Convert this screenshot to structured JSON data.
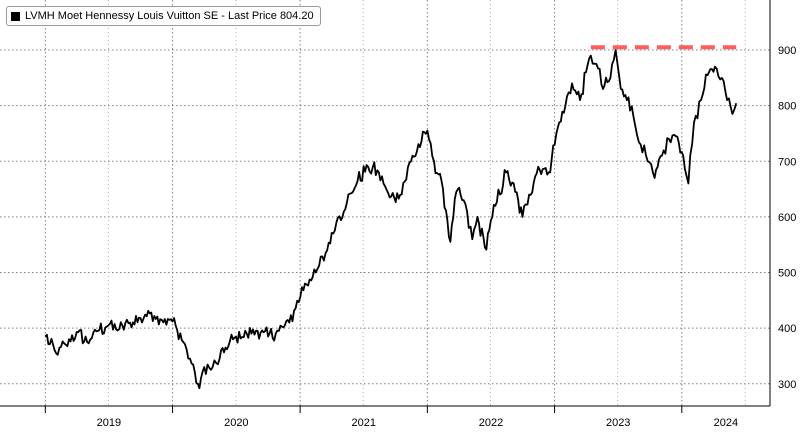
{
  "chart_data": {
    "type": "line",
    "title": "",
    "xlabel": "",
    "ylabel": "",
    "ylim": [
      260,
      990
    ],
    "yticks": [
      300,
      400,
      500,
      600,
      700,
      800,
      900
    ],
    "grid": true,
    "legend_placement": "top-left",
    "x_axis_labels": [
      "2019",
      "2020",
      "2021",
      "2022",
      "2023",
      "2024"
    ],
    "series": [
      {
        "name": "LVMH Moet Hennessy Louis Vuitton SE - Last Price 804.20",
        "color": "#000000",
        "points": [
          [
            "2019-01-01",
            385
          ],
          [
            "2019-02-01",
            355
          ],
          [
            "2019-03-01",
            370
          ],
          [
            "2019-04-01",
            393
          ],
          [
            "2019-05-01",
            375
          ],
          [
            "2019-06-01",
            395
          ],
          [
            "2019-07-01",
            405
          ],
          [
            "2019-08-01",
            398
          ],
          [
            "2019-09-01",
            410
          ],
          [
            "2019-10-01",
            418
          ],
          [
            "2019-11-01",
            428
          ],
          [
            "2019-12-01",
            415
          ],
          [
            "2020-01-01",
            412
          ],
          [
            "2020-02-01",
            375
          ],
          [
            "2020-02-20",
            345
          ],
          [
            "2020-03-05",
            320
          ],
          [
            "2020-03-18",
            292
          ],
          [
            "2020-04-01",
            330
          ],
          [
            "2020-04-20",
            325
          ],
          [
            "2020-05-15",
            345
          ],
          [
            "2020-06-01",
            365
          ],
          [
            "2020-07-01",
            385
          ],
          [
            "2020-08-01",
            390
          ],
          [
            "2020-09-01",
            395
          ],
          [
            "2020-10-01",
            385
          ],
          [
            "2020-11-01",
            395
          ],
          [
            "2020-12-01",
            410
          ],
          [
            "2021-01-15",
            480
          ],
          [
            "2021-02-15",
            500
          ],
          [
            "2021-03-15",
            535
          ],
          [
            "2021-04-15",
            590
          ],
          [
            "2021-05-15",
            625
          ],
          [
            "2021-06-15",
            665
          ],
          [
            "2021-07-15",
            690
          ],
          [
            "2021-08-15",
            680
          ],
          [
            "2021-09-15",
            635
          ],
          [
            "2021-10-15",
            640
          ],
          [
            "2021-11-15",
            700
          ],
          [
            "2021-12-15",
            735
          ],
          [
            "2022-01-01",
            755
          ],
          [
            "2022-01-20",
            700
          ],
          [
            "2022-02-15",
            650
          ],
          [
            "2022-03-08",
            555
          ],
          [
            "2022-03-25",
            645
          ],
          [
            "2022-04-15",
            630
          ],
          [
            "2022-05-10",
            560
          ],
          [
            "2022-05-25",
            600
          ],
          [
            "2022-06-15",
            545
          ],
          [
            "2022-07-15",
            620
          ],
          [
            "2022-08-15",
            680
          ],
          [
            "2022-09-10",
            645
          ],
          [
            "2022-10-01",
            600
          ],
          [
            "2022-10-20",
            640
          ],
          [
            "2022-11-15",
            690
          ],
          [
            "2022-12-15",
            680
          ],
          [
            "2023-01-10",
            760
          ],
          [
            "2023-02-01",
            800
          ],
          [
            "2023-02-20",
            840
          ],
          [
            "2023-03-15",
            810
          ],
          [
            "2023-04-01",
            860
          ],
          [
            "2023-04-15",
            890
          ],
          [
            "2023-05-01",
            875
          ],
          [
            "2023-05-20",
            830
          ],
          [
            "2023-06-10",
            850
          ],
          [
            "2023-06-25",
            900
          ],
          [
            "2023-07-10",
            830
          ],
          [
            "2023-08-01",
            815
          ],
          [
            "2023-08-20",
            765
          ],
          [
            "2023-09-05",
            730
          ],
          [
            "2023-09-25",
            700
          ],
          [
            "2023-10-15",
            670
          ],
          [
            "2023-11-05",
            710
          ],
          [
            "2023-11-25",
            740
          ],
          [
            "2023-12-15",
            745
          ],
          [
            "2024-01-05",
            710
          ],
          [
            "2024-01-20",
            660
          ],
          [
            "2024-02-05",
            770
          ],
          [
            "2024-02-25",
            810
          ],
          [
            "2024-03-15",
            855
          ],
          [
            "2024-04-05",
            870
          ],
          [
            "2024-04-25",
            850
          ],
          [
            "2024-05-10",
            810
          ],
          [
            "2024-05-25",
            785
          ],
          [
            "2024-06-05",
            804.2
          ]
        ]
      }
    ],
    "annotations": [
      {
        "type": "dashed-level",
        "value": 905,
        "x_start": "2023-04-15",
        "x_end": "2024-06-05",
        "color": "#ff5c5c"
      }
    ]
  }
}
